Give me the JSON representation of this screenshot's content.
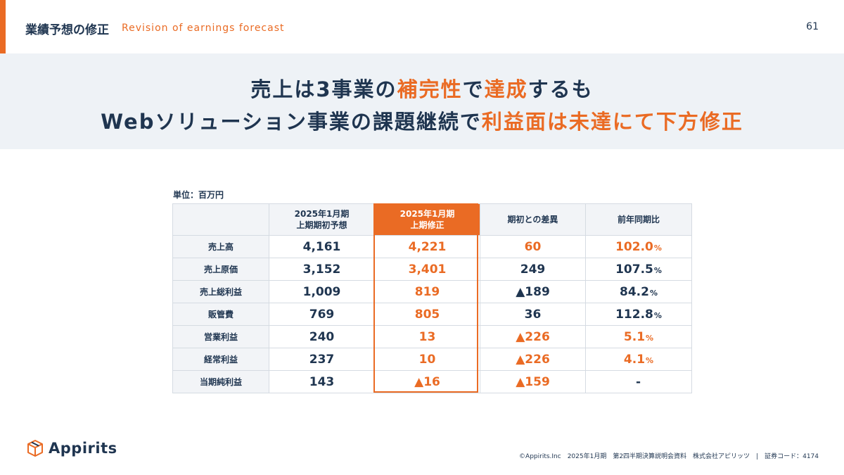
{
  "header": {
    "title": "業績予想の修正",
    "subtitle": "Revision of earnings forecast",
    "page_number": "61"
  },
  "headline": {
    "line1": [
      {
        "text": "売上は3事業の",
        "highlight": false
      },
      {
        "text": "補完性",
        "highlight": true
      },
      {
        "text": "で",
        "highlight": false
      },
      {
        "text": "達成",
        "highlight": true
      },
      {
        "text": "するも",
        "highlight": false
      }
    ],
    "line2": [
      {
        "text": "Webソリューション事業の課題継続で",
        "highlight": false
      },
      {
        "text": "利益面は未達にて下方修正",
        "highlight": true
      }
    ]
  },
  "table": {
    "unit": "単位：百万円",
    "columns": [
      {
        "line1": "2025年1月期",
        "line2": "上期期初予想"
      },
      {
        "line1": "2025年1月期",
        "line2": "上期修正"
      },
      {
        "line1": "期初との差異",
        "line2": ""
      },
      {
        "line1": "前年同期比",
        "line2": ""
      }
    ],
    "rows": [
      {
        "label": "売上高",
        "initial": "4,161",
        "revised": "4,221",
        "diff": "60",
        "diff_orange": true,
        "yoy": "102.0",
        "yoy_unit": "%",
        "yoy_orange": true
      },
      {
        "label": "売上原価",
        "initial": "3,152",
        "revised": "3,401",
        "diff": "249",
        "diff_orange": false,
        "yoy": "107.5",
        "yoy_unit": "%",
        "yoy_orange": false
      },
      {
        "label": "売上総利益",
        "initial": "1,009",
        "revised": "819",
        "diff": "▲189",
        "diff_orange": false,
        "yoy": "84.2",
        "yoy_unit": "%",
        "yoy_orange": false
      },
      {
        "label": "販管費",
        "initial": "769",
        "revised": "805",
        "diff": "36",
        "diff_orange": false,
        "yoy": "112.8",
        "yoy_unit": "%",
        "yoy_orange": false
      },
      {
        "label": "営業利益",
        "initial": "240",
        "revised": "13",
        "diff": "▲226",
        "diff_orange": true,
        "yoy": "5.1",
        "yoy_unit": "%",
        "yoy_orange": true
      },
      {
        "label": "経常利益",
        "initial": "237",
        "revised": "10",
        "diff": "▲226",
        "diff_orange": true,
        "yoy": "4.1",
        "yoy_unit": "%",
        "yoy_orange": true
      },
      {
        "label": "当期純利益",
        "initial": "143",
        "revised": "▲16",
        "diff": "▲159",
        "diff_orange": true,
        "yoy": "-",
        "yoy_unit": "",
        "yoy_orange": false
      }
    ]
  },
  "logo": {
    "name": "Appirits"
  },
  "footer": {
    "text": "©Appirits.Inc　2025年1月期　第2四半期決算説明会資料　株式会社アピリッツ　|　証券コード：4174"
  },
  "colors": {
    "accent": "#ea6b24",
    "navy": "#1f3550",
    "band": "#eef2f6"
  }
}
